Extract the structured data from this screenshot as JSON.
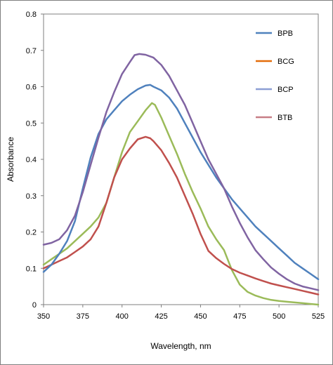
{
  "chart_data": {
    "type": "line",
    "title": "",
    "xlabel": "Wavelength, nm",
    "ylabel": "Absorbance",
    "xlim": [
      350,
      525
    ],
    "ylim": [
      0,
      0.8
    ],
    "x_ticks": [
      350,
      375,
      400,
      425,
      450,
      475,
      500,
      525
    ],
    "y_ticks": [
      0,
      0.1,
      0.2,
      0.3,
      0.4,
      0.5,
      0.6,
      0.7,
      0.8
    ],
    "grid": false,
    "legend_position": "top-right",
    "series": [
      {
        "name": "BPB",
        "color": "#4f81bd",
        "points": [
          [
            350,
            0.09
          ],
          [
            355,
            0.11
          ],
          [
            360,
            0.14
          ],
          [
            365,
            0.175
          ],
          [
            370,
            0.23
          ],
          [
            375,
            0.32
          ],
          [
            380,
            0.405
          ],
          [
            385,
            0.47
          ],
          [
            390,
            0.51
          ],
          [
            395,
            0.535
          ],
          [
            400,
            0.56
          ],
          [
            405,
            0.578
          ],
          [
            410,
            0.593
          ],
          [
            415,
            0.603
          ],
          [
            418,
            0.605
          ],
          [
            420,
            0.6
          ],
          [
            425,
            0.59
          ],
          [
            430,
            0.57
          ],
          [
            435,
            0.54
          ],
          [
            440,
            0.5
          ],
          [
            445,
            0.46
          ],
          [
            450,
            0.42
          ],
          [
            455,
            0.385
          ],
          [
            460,
            0.35
          ],
          [
            465,
            0.32
          ],
          [
            470,
            0.29
          ],
          [
            475,
            0.265
          ],
          [
            480,
            0.24
          ],
          [
            485,
            0.215
          ],
          [
            490,
            0.195
          ],
          [
            495,
            0.175
          ],
          [
            500,
            0.155
          ],
          [
            505,
            0.135
          ],
          [
            510,
            0.115
          ],
          [
            515,
            0.1
          ],
          [
            520,
            0.085
          ],
          [
            525,
            0.07
          ]
        ]
      },
      {
        "name": "BCG",
        "color": "#c0504d",
        "points": [
          [
            350,
            0.1
          ],
          [
            355,
            0.11
          ],
          [
            360,
            0.12
          ],
          [
            365,
            0.13
          ],
          [
            370,
            0.145
          ],
          [
            375,
            0.16
          ],
          [
            380,
            0.18
          ],
          [
            385,
            0.215
          ],
          [
            390,
            0.28
          ],
          [
            395,
            0.35
          ],
          [
            400,
            0.4
          ],
          [
            405,
            0.43
          ],
          [
            410,
            0.455
          ],
          [
            415,
            0.462
          ],
          [
            418,
            0.458
          ],
          [
            420,
            0.45
          ],
          [
            425,
            0.425
          ],
          [
            430,
            0.39
          ],
          [
            435,
            0.35
          ],
          [
            440,
            0.3
          ],
          [
            445,
            0.25
          ],
          [
            450,
            0.195
          ],
          [
            455,
            0.148
          ],
          [
            460,
            0.128
          ],
          [
            465,
            0.112
          ],
          [
            470,
            0.098
          ],
          [
            475,
            0.088
          ],
          [
            480,
            0.08
          ],
          [
            485,
            0.072
          ],
          [
            490,
            0.065
          ],
          [
            495,
            0.058
          ],
          [
            500,
            0.053
          ],
          [
            505,
            0.048
          ],
          [
            510,
            0.043
          ],
          [
            515,
            0.038
          ],
          [
            520,
            0.033
          ],
          [
            525,
            0.028
          ]
        ]
      },
      {
        "name": "BCP",
        "color": "#9bbb59",
        "points": [
          [
            350,
            0.11
          ],
          [
            355,
            0.125
          ],
          [
            360,
            0.14
          ],
          [
            365,
            0.155
          ],
          [
            370,
            0.175
          ],
          [
            375,
            0.195
          ],
          [
            380,
            0.215
          ],
          [
            385,
            0.24
          ],
          [
            390,
            0.28
          ],
          [
            395,
            0.35
          ],
          [
            400,
            0.42
          ],
          [
            405,
            0.475
          ],
          [
            410,
            0.505
          ],
          [
            415,
            0.535
          ],
          [
            419,
            0.555
          ],
          [
            421,
            0.55
          ],
          [
            425,
            0.515
          ],
          [
            430,
            0.465
          ],
          [
            435,
            0.415
          ],
          [
            440,
            0.36
          ],
          [
            445,
            0.31
          ],
          [
            450,
            0.265
          ],
          [
            455,
            0.215
          ],
          [
            460,
            0.18
          ],
          [
            465,
            0.15
          ],
          [
            470,
            0.095
          ],
          [
            475,
            0.055
          ],
          [
            480,
            0.035
          ],
          [
            485,
            0.025
          ],
          [
            490,
            0.018
          ],
          [
            495,
            0.013
          ],
          [
            500,
            0.01
          ],
          [
            505,
            0.008
          ],
          [
            510,
            0.006
          ],
          [
            515,
            0.004
          ],
          [
            520,
            0.002
          ],
          [
            525,
            0.0
          ]
        ]
      },
      {
        "name": "BTB",
        "color": "#8064a2",
        "points": [
          [
            350,
            0.165
          ],
          [
            355,
            0.17
          ],
          [
            360,
            0.18
          ],
          [
            365,
            0.205
          ],
          [
            370,
            0.245
          ],
          [
            375,
            0.31
          ],
          [
            380,
            0.385
          ],
          [
            385,
            0.46
          ],
          [
            390,
            0.53
          ],
          [
            395,
            0.585
          ],
          [
            400,
            0.635
          ],
          [
            405,
            0.668
          ],
          [
            408,
            0.687
          ],
          [
            411,
            0.69
          ],
          [
            415,
            0.688
          ],
          [
            420,
            0.68
          ],
          [
            425,
            0.66
          ],
          [
            430,
            0.63
          ],
          [
            435,
            0.59
          ],
          [
            440,
            0.55
          ],
          [
            445,
            0.5
          ],
          [
            450,
            0.45
          ],
          [
            455,
            0.4
          ],
          [
            460,
            0.36
          ],
          [
            465,
            0.32
          ],
          [
            470,
            0.27
          ],
          [
            475,
            0.225
          ],
          [
            480,
            0.185
          ],
          [
            485,
            0.15
          ],
          [
            490,
            0.125
          ],
          [
            495,
            0.102
          ],
          [
            500,
            0.085
          ],
          [
            505,
            0.07
          ],
          [
            510,
            0.058
          ],
          [
            515,
            0.05
          ],
          [
            520,
            0.045
          ],
          [
            525,
            0.04
          ]
        ]
      }
    ]
  }
}
